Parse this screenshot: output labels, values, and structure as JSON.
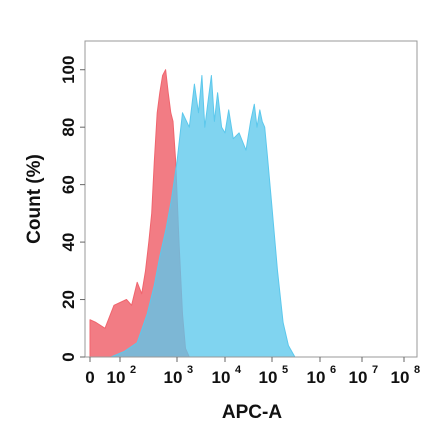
{
  "chart_data": {
    "type": "area",
    "xlabel": "APC-A",
    "ylabel": "Count  (%)",
    "x_scale": "biexponential",
    "xlim": [
      0,
      100000000
    ],
    "ylim": [
      0,
      110
    ],
    "x_ticks": [
      {
        "value": 0,
        "base": "0",
        "exp": ""
      },
      {
        "value": 100,
        "base": "10",
        "exp": "2"
      },
      {
        "value": 1000,
        "base": "10",
        "exp": "3"
      },
      {
        "value": 10000,
        "base": "10",
        "exp": "4"
      },
      {
        "value": 100000,
        "base": "10",
        "exp": "5"
      },
      {
        "value": 1000000,
        "base": "10",
        "exp": "6"
      },
      {
        "value": 10000000,
        "base": "10",
        "exp": "7"
      },
      {
        "value": 100000000,
        "base": "10",
        "exp": "8"
      }
    ],
    "y_ticks": [
      "0",
      "20",
      "40",
      "60",
      "80",
      "100"
    ],
    "series": [
      {
        "color": "#f0656e",
        "points": [
          [
            0,
            13
          ],
          [
            20,
            12
          ],
          [
            50,
            10
          ],
          [
            80,
            18
          ],
          [
            130,
            20
          ],
          [
            160,
            18
          ],
          [
            200,
            26
          ],
          [
            240,
            22
          ],
          [
            280,
            30
          ],
          [
            320,
            40
          ],
          [
            360,
            50
          ],
          [
            400,
            68
          ],
          [
            450,
            85
          ],
          [
            500,
            92
          ],
          [
            560,
            98
          ],
          [
            630,
            100
          ],
          [
            700,
            92
          ],
          [
            780,
            85
          ],
          [
            850,
            82
          ],
          [
            950,
            68
          ],
          [
            1100,
            40
          ],
          [
            1300,
            15
          ],
          [
            1500,
            3
          ],
          [
            1800,
            0
          ]
        ]
      },
      {
        "color": "#5cc8ec",
        "points": [
          [
            70,
            0
          ],
          [
            120,
            2
          ],
          [
            200,
            5
          ],
          [
            300,
            15
          ],
          [
            400,
            25
          ],
          [
            500,
            35
          ],
          [
            650,
            45
          ],
          [
            800,
            55
          ],
          [
            1000,
            68
          ],
          [
            1300,
            85
          ],
          [
            1800,
            80
          ],
          [
            2300,
            95
          ],
          [
            2800,
            85
          ],
          [
            3300,
            98
          ],
          [
            3800,
            80
          ],
          [
            4500,
            90
          ],
          [
            5200,
            98
          ],
          [
            6000,
            82
          ],
          [
            7000,
            92
          ],
          [
            8500,
            80
          ],
          [
            10000,
            78
          ],
          [
            12000,
            86
          ],
          [
            15000,
            76
          ],
          [
            20000,
            78
          ],
          [
            28000,
            72
          ],
          [
            35000,
            82
          ],
          [
            42000,
            88
          ],
          [
            48000,
            80
          ],
          [
            55000,
            86
          ],
          [
            62000,
            82
          ],
          [
            70000,
            80
          ],
          [
            80000,
            70
          ],
          [
            100000,
            52
          ],
          [
            130000,
            30
          ],
          [
            170000,
            12
          ],
          [
            220000,
            4
          ],
          [
            300000,
            0
          ]
        ]
      }
    ]
  }
}
